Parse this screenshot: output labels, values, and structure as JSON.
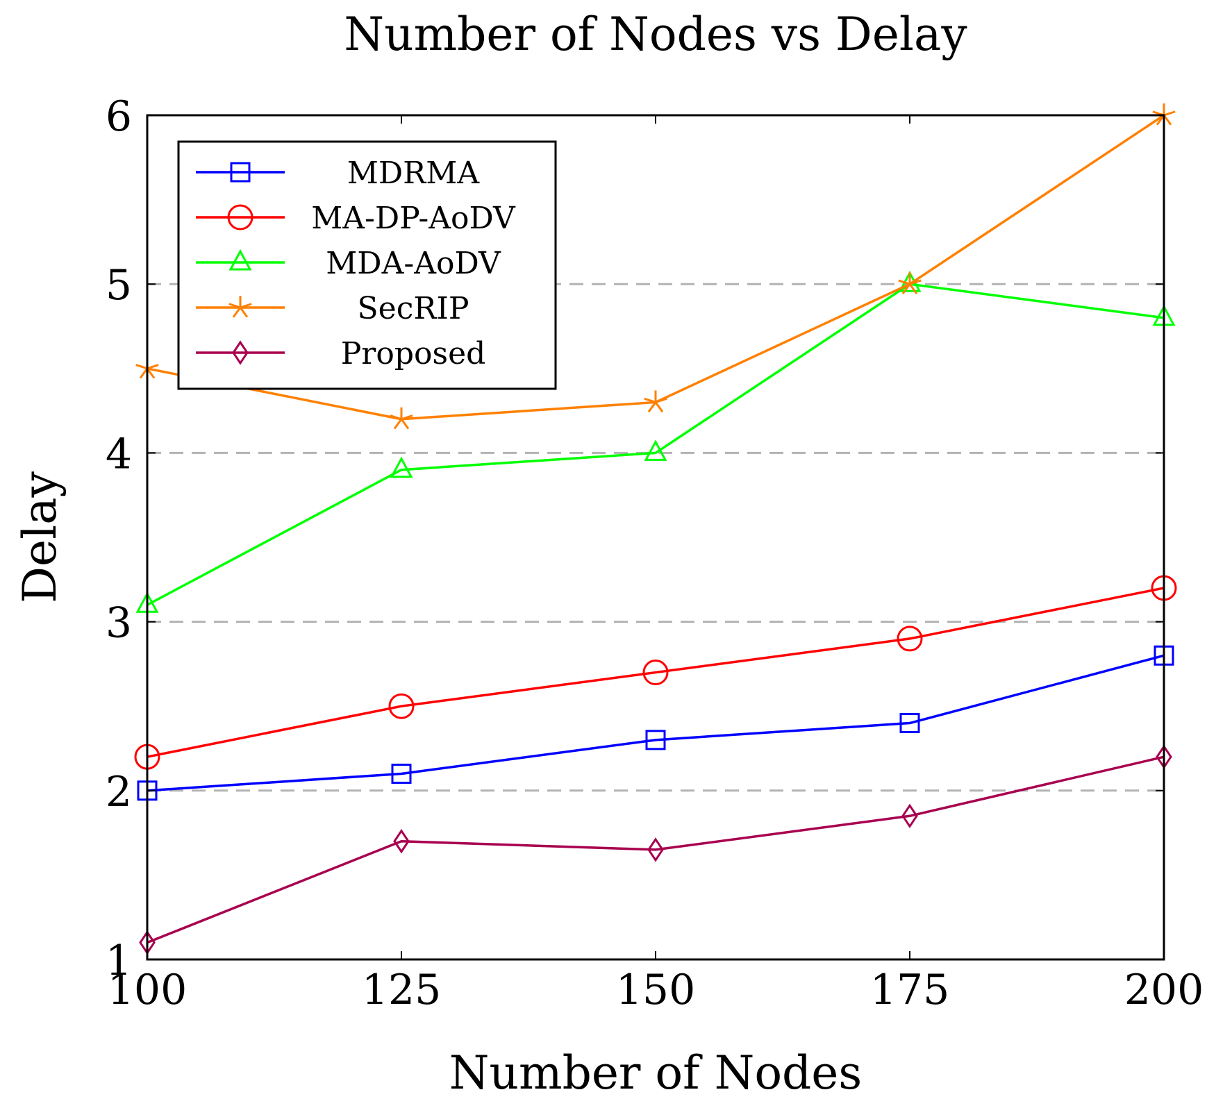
{
  "chart_data": {
    "type": "line",
    "title": "Number of Nodes vs Delay",
    "xlabel": "Number of Nodes",
    "ylabel": "Delay",
    "x": [
      100,
      125,
      150,
      175,
      200
    ],
    "xticks": [
      "100",
      "125",
      "150",
      "175",
      "200"
    ],
    "yticks": [
      "1",
      "2",
      "3",
      "4",
      "5",
      "6"
    ],
    "xlim": [
      100,
      200
    ],
    "ylim": [
      1,
      6
    ],
    "grid": "horizontal-dashed",
    "legend_position": "top-left",
    "series": [
      {
        "name": "MDRMA",
        "color": "#0000ff",
        "marker": "square",
        "values": [
          2.0,
          2.1,
          2.3,
          2.4,
          2.8
        ]
      },
      {
        "name": "MA-DP-AoDV",
        "color": "#ff0000",
        "marker": "circle",
        "values": [
          2.2,
          2.5,
          2.7,
          2.9,
          3.2
        ]
      },
      {
        "name": "MDA-AoDV",
        "color": "#00ff00",
        "marker": "triangle",
        "values": [
          3.1,
          3.9,
          4.0,
          5.0,
          4.8
        ]
      },
      {
        "name": "SecRIP",
        "color": "#ff8000",
        "marker": "star",
        "values": [
          4.5,
          4.2,
          4.3,
          5.0,
          6.0
        ]
      },
      {
        "name": "Proposed",
        "color": "#a8004f",
        "marker": "diamond",
        "values": [
          1.1,
          1.7,
          1.65,
          1.85,
          2.2
        ]
      }
    ]
  }
}
